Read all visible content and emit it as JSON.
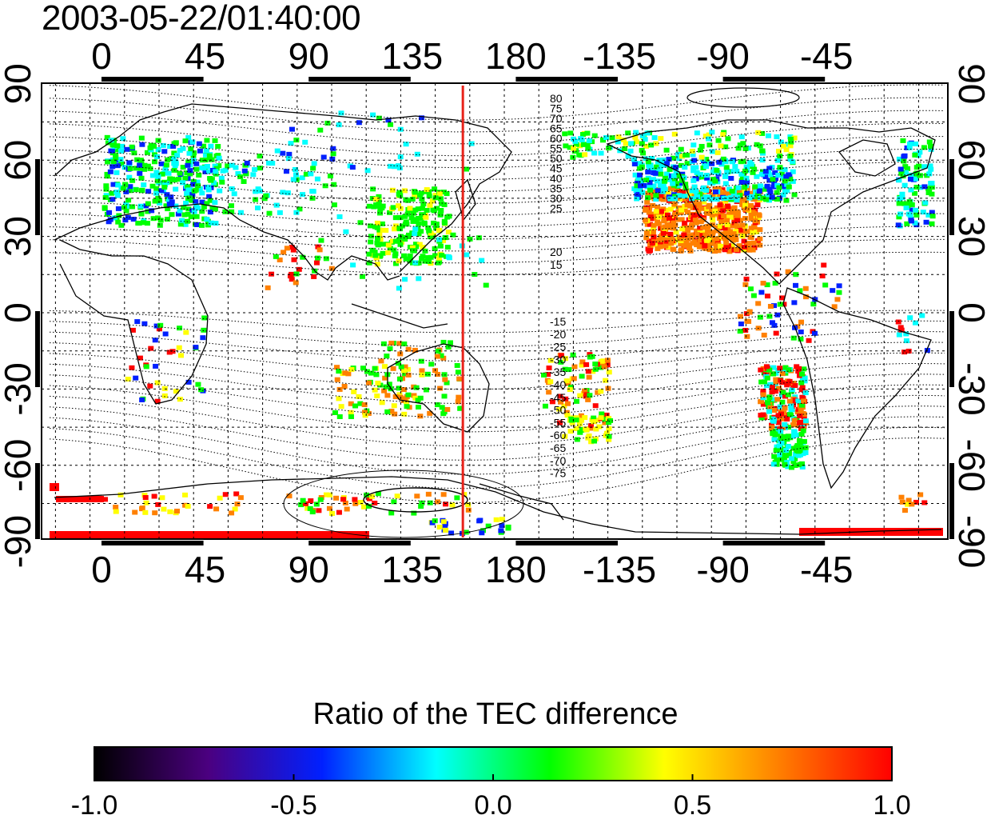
{
  "title": "2003-05-22/01:40:00",
  "map": {
    "lon_ticks": [
      "0",
      "45",
      "90",
      "135",
      "180",
      "-135",
      "-90",
      "-45"
    ],
    "lat_ticks_left": [
      "90",
      "60",
      "30",
      "0",
      "-30",
      "-60",
      "-90"
    ],
    "lat_ticks_right": [
      "90",
      "60",
      "30",
      "0",
      "-30",
      "-60",
      "-90"
    ],
    "contour_labels_north": [
      "80",
      "75",
      "70",
      "65",
      "60",
      "55",
      "50",
      "45",
      "40",
      "35",
      "30",
      "25",
      "20",
      "15"
    ],
    "contour_labels_south": [
      "-15",
      "-20",
      "-25",
      "-30",
      "-35",
      "-40",
      "-45",
      "-50",
      "-55",
      "-60",
      "-65",
      "-70",
      "-75"
    ],
    "terminator_longitude": 157,
    "terminator_color": "#e8231b"
  },
  "colorbar": {
    "title": "Ratio of the TEC difference",
    "min": -1.0,
    "max": 1.0,
    "tick_labels": [
      "-1.0",
      "-0.5",
      "0.0",
      "0.5",
      "1.0"
    ],
    "colors": [
      "#000000",
      "#4b0080",
      "#0020ff",
      "#00ffff",
      "#00ff00",
      "#ffff00",
      "#ff8000",
      "#ff0000"
    ]
  }
}
